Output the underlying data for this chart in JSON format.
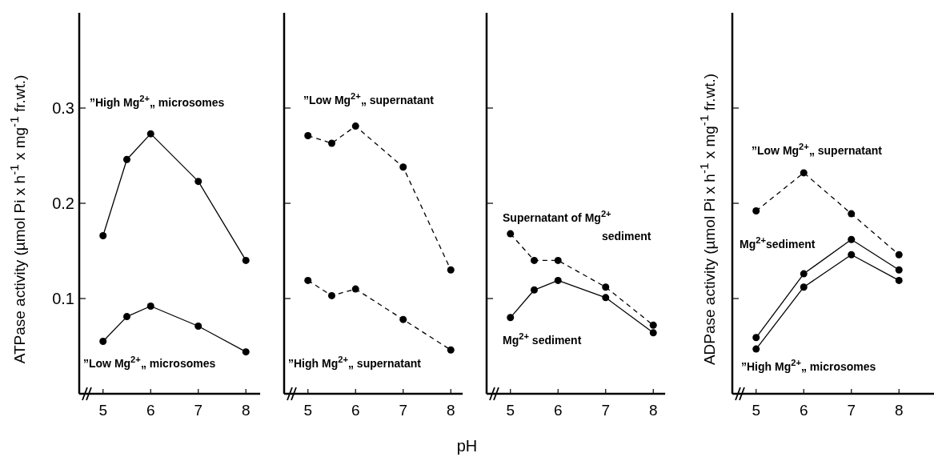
{
  "chart_data": [
    {
      "type": "line",
      "ylabel": "ATPase activity (µmol Pi x h$^{-1}$ x mg$^{-1}$ fr.wt.)",
      "x": [
        5,
        5.5,
        6,
        7,
        8
      ],
      "xlim": [
        4.5,
        8.3
      ],
      "xticks": [
        5,
        6,
        7,
        8
      ],
      "ylim": [
        0,
        0.4
      ],
      "yticks": [
        0.1,
        0.2,
        0.3
      ],
      "marker": "circle",
      "series": [
        {
          "name": "”High Mg$^{2+}$„ microsomes",
          "color": "#000000",
          "line_style": "solid",
          "values": [
            0.166,
            0.246,
            0.273,
            0.223,
            0.14
          ]
        },
        {
          "name": "”Low Mg$^{2+}$„ microsomes",
          "color": "#000000",
          "line_style": "solid",
          "values": [
            0.055,
            0.081,
            0.092,
            0.071,
            0.044
          ]
        }
      ]
    },
    {
      "type": "line",
      "xlabel": "pH",
      "x": [
        5,
        5.5,
        6,
        7,
        8
      ],
      "xlim": [
        4.5,
        8.25
      ],
      "xticks": [
        5,
        6,
        7,
        8
      ],
      "ylim": [
        0,
        0.4
      ],
      "yticks": [
        0.1,
        0.2,
        0.3
      ],
      "tick_labels": "x",
      "marker": "circle",
      "series": [
        {
          "name": "”Low Mg$^{2+}$„ supernatant",
          "color": "#000000",
          "line_style": "dashed",
          "values": [
            0.271,
            0.263,
            0.281,
            0.238,
            0.13
          ]
        },
        {
          "name": "”High Mg$^{2+}$„ supernatant",
          "color": "#000000",
          "line_style": "dashed",
          "values": [
            0.119,
            0.103,
            0.11,
            0.078,
            0.046
          ]
        }
      ]
    },
    {
      "type": "line",
      "x": [
        5,
        5.5,
        6,
        7,
        8
      ],
      "xlim": [
        4.5,
        8.25
      ],
      "xticks": [
        5,
        6,
        7,
        8
      ],
      "ylim": [
        0,
        0.4
      ],
      "yticks": [
        0.1,
        0.2,
        0.3
      ],
      "tick_labels": "x",
      "marker": "circle",
      "series": [
        {
          "name": "Supernatant of Mg$^{2+}$\nsediment",
          "color": "#000000",
          "line_style": "dashed",
          "values": [
            0.168,
            0.14,
            0.14,
            0.112,
            0.072
          ]
        },
        {
          "name": "Mg$^{2+}$ sediment",
          "color": "#000000",
          "line_style": "solid",
          "values": [
            0.08,
            0.109,
            0.119,
            0.101,
            0.064
          ]
        }
      ]
    },
    {
      "type": "line",
      "ylabel": "ADPase activity (µmol Pi x h$^{-1}$ x mg$^{-1}$ fr.wt.)",
      "x": [
        5,
        6,
        7,
        8
      ],
      "xlim": [
        4.5,
        8.75
      ],
      "xticks": [
        5,
        6,
        7,
        8
      ],
      "ylim": [
        0,
        0.4
      ],
      "yticks": [
        0.1,
        0.2,
        0.3
      ],
      "tick_labels": "x",
      "marker": "circle",
      "series": [
        {
          "name": "”Low Mg$^{2+}$„ supernatant",
          "color": "#000000",
          "line_style": "dashed",
          "values": [
            0.192,
            0.232,
            0.189,
            0.146
          ]
        },
        {
          "name": "Mg$^{2+}$sediment",
          "color": "#000000",
          "line_style": "solid",
          "values": [
            0.059,
            0.126,
            0.162,
            0.13
          ]
        },
        {
          "name": "”High Mg$^{2+}$„ microsomes",
          "color": "#000000",
          "line_style": "solid",
          "values": [
            0.047,
            0.112,
            0.146,
            0.119
          ]
        }
      ]
    }
  ]
}
